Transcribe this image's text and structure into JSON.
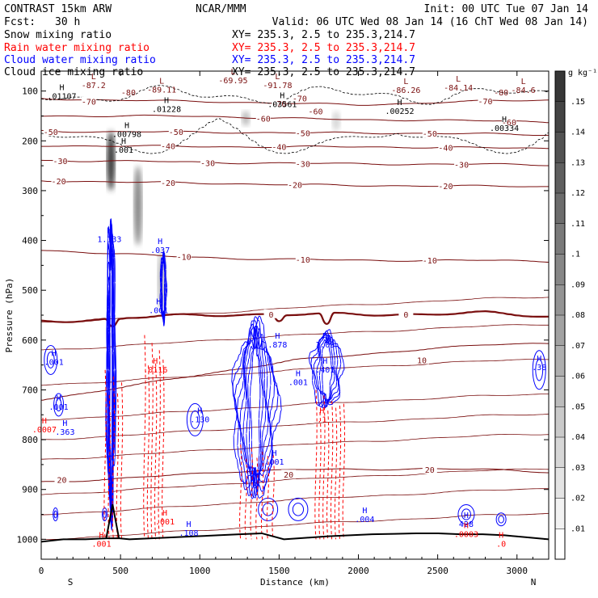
{
  "header": {
    "model": "CONTRAST 15km ARW",
    "fcst_label": "Fcst:",
    "fcst_value": "30 h",
    "center": "NCAR/MMM",
    "init": "Init: 00 UTC Tue 07 Jan 14",
    "valid": "Valid: 06 UTC Wed 08 Jan 14 (16 ChT Wed 08 Jan 14)"
  },
  "fields": [
    {
      "name": "Snow mixing ratio",
      "xy": "XY= 235.3,  2.5 to 235.3,214.7",
      "color": "#000000"
    },
    {
      "name": "Rain water mixing ratio",
      "xy": "XY= 235.3,  2.5 to 235.3,214.7",
      "color": "#ff0000"
    },
    {
      "name": "Cloud water mixing ratio",
      "xy": "XY= 235.3,  2.5 to 235.3,214.7",
      "color": "#0000ff"
    },
    {
      "name": "Cloud ice mixing ratio",
      "xy": "XY= 235.3,  2.5 to 235.3,214.7",
      "color": "#000000"
    }
  ],
  "colors": {
    "temperature": "#7a0f0f",
    "zero_line": "#7a0f0f",
    "rain": "#ff0000",
    "cloud": "#0000ff",
    "terrain": "#000000",
    "ice": "#000000"
  },
  "chart_data": {
    "type": "heatmap",
    "xlabel": "Distance (km)",
    "ylabel": "Pressure (hPa)",
    "xlim": [
      0,
      3200
    ],
    "ylim": [
      1040,
      60
    ],
    "x_ticks": [
      "0",
      "500",
      "1000",
      "1500",
      "2000",
      "2500",
      "3000"
    ],
    "y_ticks": [
      "100",
      "200",
      "300",
      "400",
      "500",
      "600",
      "700",
      "800",
      "900",
      "1000"
    ],
    "x_end_labels": {
      "left": "S",
      "right": "N"
    },
    "colorbar": {
      "unit": "g kg⁻¹",
      "ticks": [
        ".01",
        ".02",
        ".03",
        ".04",
        ".05",
        ".06",
        ".07",
        ".08",
        ".09",
        ".1",
        ".11",
        ".12",
        ".13",
        ".14",
        ".15"
      ],
      "max": 0.16
    },
    "temperature_contours": [
      {
        "label": "-70",
        "p": [
          115,
          118,
          120,
          122,
          125,
          128,
          124,
          120,
          118
        ],
        "labels_at": [
          {
            "x": 300,
            "p": 121
          },
          {
            "x": 1500,
            "p": 125
          },
          {
            "x": 2800,
            "p": 120
          }
        ]
      },
      {
        "label": "-60",
        "p": [
          150,
          150,
          150,
          152,
          155,
          158,
          158,
          160,
          162
        ],
        "labels_at": [
          {
            "x": 1400,
            "p": 155
          },
          {
            "x": 2950,
            "p": 162
          }
        ]
      },
      {
        "label": "-50",
        "p": [
          180,
          182,
          182,
          183,
          184,
          184,
          185,
          186,
          188
        ],
        "labels_at": [
          {
            "x": 60,
            "p": 182
          },
          {
            "x": 850,
            "p": 182
          },
          {
            "x": 1650,
            "p": 184
          },
          {
            "x": 2450,
            "p": 185
          }
        ]
      },
      {
        "label": "-40",
        "p": [
          210,
          210,
          211,
          212,
          212,
          212,
          213,
          214,
          215
        ],
        "labels_at": [
          {
            "x": 800,
            "p": 210
          },
          {
            "x": 1500,
            "p": 212
          },
          {
            "x": 2550,
            "p": 213
          }
        ]
      },
      {
        "label": "-30",
        "p": [
          240,
          240,
          242,
          244,
          245,
          246,
          247,
          247,
          248
        ],
        "labels_at": [
          {
            "x": 120,
            "p": 240
          },
          {
            "x": 1050,
            "p": 244
          },
          {
            "x": 1650,
            "p": 246
          },
          {
            "x": 2650,
            "p": 247
          }
        ]
      },
      {
        "label": "-20",
        "p": [
          280,
          282,
          284,
          286,
          288,
          290,
          290,
          291,
          292
        ],
        "labels_at": [
          {
            "x": 110,
            "p": 281
          },
          {
            "x": 800,
            "p": 284
          },
          {
            "x": 1600,
            "p": 288
          },
          {
            "x": 2550,
            "p": 290
          }
        ]
      },
      {
        "label": "-10",
        "p": [
          420,
          425,
          432,
          436,
          438,
          440,
          440,
          440,
          442
        ],
        "labels_at": [
          {
            "x": 900,
            "p": 432
          },
          {
            "x": 1650,
            "p": 438
          },
          {
            "x": 2450,
            "p": 440
          }
        ]
      },
      {
        "label": "0",
        "p": [
          562,
          558,
          552,
          548,
          549,
          548,
          548,
          546,
          552
        ],
        "labels_at": [
          {
            "x": 1450,
            "p": 548
          },
          {
            "x": 2300,
            "p": 548
          }
        ]
      },
      {
        "label": "10",
        "p": [
          720,
          700,
          680,
          660,
          640,
          630,
          618,
          610,
          606
        ],
        "labels_at": [
          {
            "x": 2400,
            "p": 640
          }
        ]
      },
      {
        "label": "20",
        "p": [
          885,
          880,
          872,
          864,
          860,
          860,
          858,
          860,
          865
        ],
        "labels_at": [
          {
            "x": 130,
            "p": 880
          },
          {
            "x": 1560,
            "p": 870
          },
          {
            "x": 2450,
            "p": 860
          }
        ]
      }
    ],
    "extra_isotherms_p": [
      1000,
      950,
      910,
      840,
      800,
      760,
      690,
      620,
      565
    ],
    "dashed_contour_labels": [
      {
        "label": "-80",
        "x": 550,
        "p": 102
      },
      {
        "label": "-80",
        "x": 2900,
        "p": 102
      },
      {
        "label": "-70",
        "x": 1630,
        "p": 114
      },
      {
        "label": "-60",
        "x": 1730,
        "p": 140
      }
    ],
    "terrain_pressure": [
      1005,
      1000,
      1000,
      998,
      1000,
      998,
      996,
      994,
      992,
      990,
      988,
      1000,
      997,
      994,
      992,
      990,
      989,
      988,
      988,
      990,
      990,
      992,
      996,
      1000
    ],
    "terrain_peak": {
      "x": 450,
      "p": 930
    },
    "snow_streaks": [
      {
        "x": 440,
        "p_top": 180,
        "p_bottom": 300,
        "max": 0.15
      },
      {
        "x": 610,
        "p_top": 250,
        "p_bottom": 410,
        "max": 0.09
      },
      {
        "x": 760,
        "p_top": 420,
        "p_bottom": 540,
        "max": 0.05
      },
      {
        "x": 1290,
        "p_top": 140,
        "p_bottom": 170,
        "max": 0.05
      },
      {
        "x": 1860,
        "p_top": 140,
        "p_bottom": 180,
        "max": 0.03
      }
    ],
    "cloud_water_regions": [
      {
        "x_center": 440,
        "x_width": 60,
        "p_top": 380,
        "p_bottom": 940,
        "levels": 8
      },
      {
        "x_center": 770,
        "x_width": 40,
        "p_top": 430,
        "p_bottom": 560,
        "levels": 4
      },
      {
        "x_center": 1350,
        "x_width": 280,
        "p_top": 580,
        "p_bottom": 900,
        "levels": 9
      },
      {
        "x_center": 1800,
        "x_width": 200,
        "p_top": 590,
        "p_bottom": 730,
        "levels": 6
      }
    ],
    "rain_columns": [
      {
        "x_start": 390,
        "x_end": 520,
        "p_top": 660,
        "p_bottom": 1000
      },
      {
        "x_start": 640,
        "x_end": 780,
        "p_top": 590,
        "p_bottom": 1000
      },
      {
        "x_start": 1240,
        "x_end": 1480,
        "p_top": 810,
        "p_bottom": 1000
      },
      {
        "x_start": 1720,
        "x_end": 1920,
        "p_top": 700,
        "p_bottom": 1000
      }
    ],
    "high_low_labels": [
      {
        "kind": "L",
        "value": "-87.2",
        "x": 330,
        "p": 86,
        "color": "#7a0f0f"
      },
      {
        "kind": "L",
        "value": "-89.11",
        "x": 760,
        "p": 95,
        "color": "#7a0f0f"
      },
      {
        "kind": "L",
        "value": "-69.95",
        "x": 1210,
        "p": 76,
        "color": "#7a0f0f"
      },
      {
        "kind": "L",
        "value": "-91.78",
        "x": 1490,
        "p": 86,
        "color": "#7a0f0f"
      },
      {
        "kind": "L",
        "value": "-86.26",
        "x": 2300,
        "p": 96,
        "color": "#7a0f0f"
      },
      {
        "kind": "L",
        "value": "-84.14",
        "x": 2630,
        "p": 91,
        "color": "#7a0f0f"
      },
      {
        "kind": "L",
        "value": "-84.6",
        "x": 3040,
        "p": 96,
        "color": "#7a0f0f"
      },
      {
        "kind": "H",
        "value": ".01107",
        "x": 130,
        "p": 108,
        "color": "#000000"
      },
      {
        "kind": "H",
        "value": ".01228",
        "x": 790,
        "p": 134,
        "color": "#000000"
      },
      {
        "kind": "H",
        "value": ".03561",
        "x": 1520,
        "p": 124,
        "color": "#000000"
      },
      {
        "kind": "H",
        "value": ".00252",
        "x": 2260,
        "p": 138,
        "color": "#000000"
      },
      {
        "kind": "H",
        "value": ".00334",
        "x": 2920,
        "p": 172,
        "color": "#000000"
      },
      {
        "kind": "H",
        "value": ".00798",
        "x": 540,
        "p": 184,
        "color": "#000000"
      },
      {
        "kind": "H",
        "value": ".001",
        "x": 520,
        "p": 216,
        "color": "#000000"
      },
      {
        "kind": "H",
        "value": "1.133",
        "x": 430,
        "p": 395,
        "color": "#0000ff"
      },
      {
        "kind": "H",
        "value": ".037",
        "x": 750,
        "p": 417,
        "color": "#0000ff"
      },
      {
        "kind": "H",
        "value": ".001",
        "x": 740,
        "p": 538,
        "color": "#0000ff"
      },
      {
        "kind": "H",
        "value": ".878",
        "x": 1490,
        "p": 607,
        "color": "#0000ff"
      },
      {
        "kind": "H",
        "value": "1.05",
        "x": 1790,
        "p": 607,
        "color": "#0000ff"
      },
      {
        "kind": "H",
        "value": ".401",
        "x": 1790,
        "p": 657,
        "color": "#0000ff"
      },
      {
        "kind": "H",
        "value": ".001",
        "x": 1620,
        "p": 682,
        "color": "#0000ff"
      },
      {
        "kind": "H",
        "value": ".001",
        "x": 80,
        "p": 642,
        "color": "#0000ff"
      },
      {
        "kind": "H",
        "value": ".001",
        "x": 110,
        "p": 732,
        "color": "#0000ff"
      },
      {
        "kind": "H",
        "value": ".363",
        "x": 150,
        "p": 782,
        "color": "#0000ff"
      },
      {
        "kind": "H",
        "value": ".130",
        "x": 1000,
        "p": 757,
        "color": "#0000ff"
      },
      {
        "kind": "H",
        "value": ".001",
        "x": 1470,
        "p": 842,
        "color": "#0000ff"
      },
      {
        "kind": "H",
        "value": ".004",
        "x": 2040,
        "p": 957,
        "color": "#0000ff"
      },
      {
        "kind": "H",
        "value": ".108",
        "x": 930,
        "p": 985,
        "color": "#0000ff"
      },
      {
        "kind": "H",
        "value": "428",
        "x": 2680,
        "p": 967,
        "color": "#0000ff"
      },
      {
        "kind": "H",
        "value": ".38",
        "x": 3140,
        "p": 652,
        "color": "#0000ff"
      },
      {
        "kind": "H",
        "value": ".0116",
        "x": 720,
        "p": 657,
        "color": "#ff0000"
      },
      {
        "kind": "H",
        "value": ".0007",
        "x": 20,
        "p": 777,
        "color": "#ff0000"
      },
      {
        "kind": "H",
        "value": ".1",
        "x": 1770,
        "p": 757,
        "color": "#ff0000"
      },
      {
        "kind": "H",
        "value": ".001",
        "x": 780,
        "p": 962,
        "color": "#ff0000"
      },
      {
        "kind": "H",
        "value": ".001",
        "x": 380,
        "p": 1007,
        "color": "#ff0000"
      },
      {
        "kind": "H",
        "value": ".0003",
        "x": 2680,
        "p": 987,
        "color": "#ff0000"
      },
      {
        "kind": "H",
        "value": ".0",
        "x": 2900,
        "p": 1007,
        "color": "#ff0000"
      }
    ]
  }
}
